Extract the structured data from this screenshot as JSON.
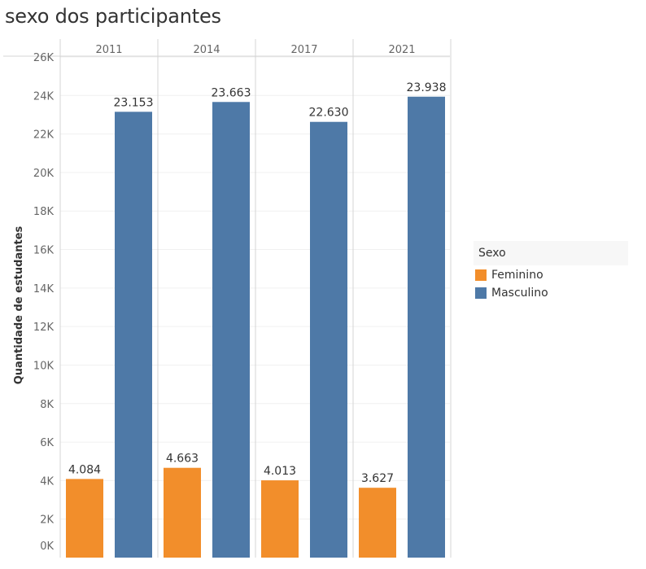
{
  "chart_data": {
    "type": "bar",
    "title": "sexo dos participantes",
    "ylabel": "Quantidade de estudantes",
    "xlabel": "",
    "columns": [
      "2011",
      "2014",
      "2017",
      "2021"
    ],
    "series": [
      {
        "name": "Feminino",
        "color": "#f28e2b",
        "values": [
          4084,
          4663,
          4013,
          3627
        ],
        "labels": [
          "4.084",
          "4.663",
          "4.013",
          "3.627"
        ]
      },
      {
        "name": "Masculino",
        "color": "#4e79a7",
        "values": [
          23153,
          23663,
          22630,
          23938
        ],
        "labels": [
          "23.153",
          "23.663",
          "22.630",
          "23.938"
        ]
      }
    ],
    "ylim": [
      0,
      26000
    ],
    "yticks": [
      0,
      2000,
      4000,
      6000,
      8000,
      10000,
      12000,
      14000,
      16000,
      18000,
      20000,
      22000,
      24000,
      26000
    ],
    "ytick_labels": [
      "0K",
      "2K",
      "4K",
      "6K",
      "8K",
      "10K",
      "12K",
      "14K",
      "16K",
      "18K",
      "20K",
      "22K",
      "24K",
      "26K"
    ],
    "grid": true,
    "legend": {
      "title": "Sexo",
      "position": "right"
    }
  }
}
